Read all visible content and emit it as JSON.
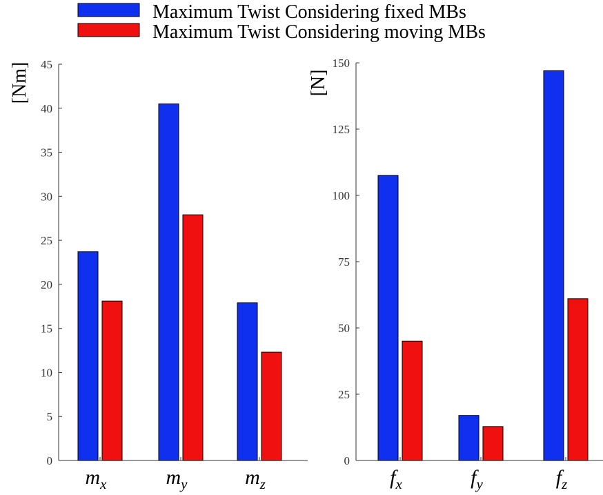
{
  "legend": [
    {
      "label": "Maximum Twist Considering fixed MBs",
      "color": "#1030f0"
    },
    {
      "label": "Maximum Twist Considering moving MBs",
      "color": "#f01010"
    }
  ],
  "chart_data": [
    {
      "type": "bar",
      "ylabel": "[Nm]",
      "ylim": [
        0,
        45
      ],
      "yticks": [
        0,
        5,
        10,
        15,
        20,
        25,
        30,
        35,
        40,
        45
      ],
      "categories": [
        {
          "base": "m",
          "sub": "x"
        },
        {
          "base": "m",
          "sub": "y"
        },
        {
          "base": "m",
          "sub": "z"
        }
      ],
      "series": [
        {
          "name": "Maximum Twist Considering fixed MBs",
          "values": [
            23.7,
            40.5,
            17.9
          ]
        },
        {
          "name": "Maximum Twist Considering moving MBs",
          "values": [
            18.1,
            27.9,
            12.3
          ]
        }
      ]
    },
    {
      "type": "bar",
      "ylabel": "[N]",
      "ylim": [
        0,
        150
      ],
      "yticks": [
        0,
        25,
        50,
        75,
        100,
        125,
        150
      ],
      "categories": [
        {
          "base": "f",
          "sub": "x"
        },
        {
          "base": "f",
          "sub": "y"
        },
        {
          "base": "f",
          "sub": "z"
        }
      ],
      "series": [
        {
          "name": "Maximum Twist Considering fixed MBs",
          "values": [
            107.5,
            17.0,
            147.0
          ]
        },
        {
          "name": "Maximum Twist Considering moving MBs",
          "values": [
            45.0,
            12.8,
            61.0
          ]
        }
      ]
    }
  ]
}
